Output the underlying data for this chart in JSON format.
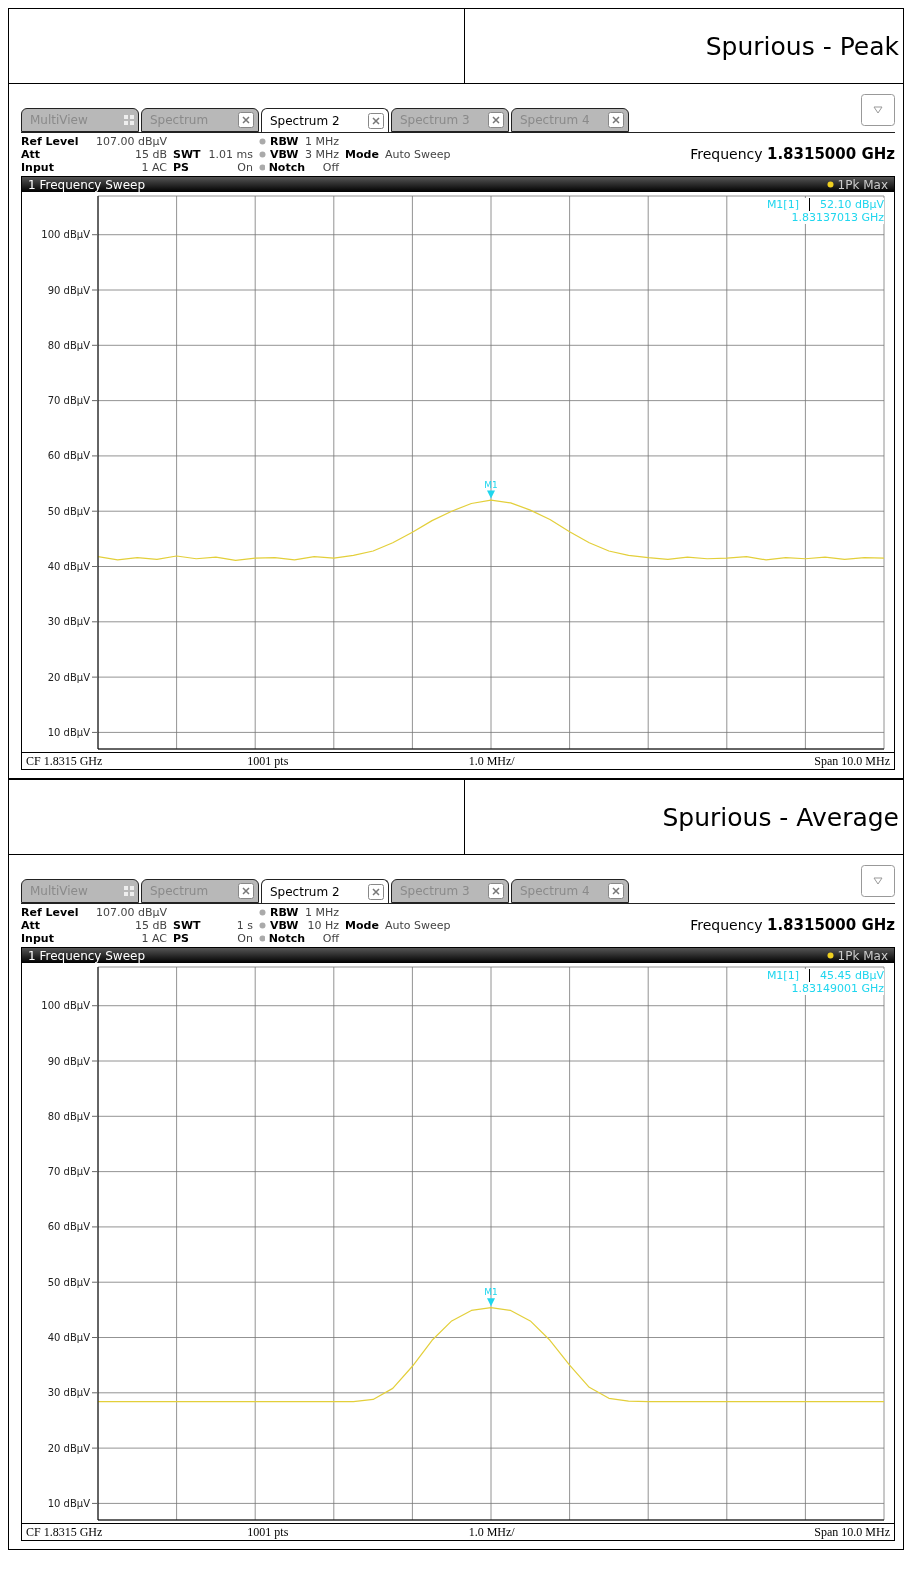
{
  "chart_data": [
    {
      "type": "line",
      "title": "Spurious - Peak",
      "categories": [
        null,
        null,
        null,
        null,
        null,
        null,
        null,
        null,
        null,
        null,
        null,
        null,
        null,
        null,
        null,
        null,
        null,
        null,
        null,
        null,
        null,
        null,
        null,
        null,
        null,
        null,
        null,
        null,
        null,
        null,
        null,
        null,
        null,
        null,
        null,
        null,
        null,
        null,
        null,
        null,
        null
      ],
      "series": [
        {
          "color": "#e3cf3a",
          "values": [
            41.8,
            41.2,
            41.6,
            41.3,
            41.9,
            41.4,
            41.7,
            41.1,
            41.5,
            41.6,
            41.2,
            41.8,
            41.5,
            42.0,
            42.8,
            44.3,
            46.2,
            48.3,
            50.0,
            51.4,
            52.0,
            51.5,
            50.2,
            48.5,
            46.3,
            44.3,
            42.8,
            42.0,
            41.6,
            41.3,
            41.7,
            41.4,
            41.5,
            41.8,
            41.2,
            41.6,
            41.4,
            41.7,
            41.3,
            41.6,
            41.5
          ]
        }
      ],
      "ylim": [
        7,
        107
      ],
      "yticks": [
        {
          "value": 10,
          "label": "10 dBµV"
        },
        {
          "value": 20,
          "label": "20 dBµV"
        },
        {
          "value": 30,
          "label": "30 dBµV"
        },
        {
          "value": 40,
          "label": "40 dBµV"
        },
        {
          "value": 50,
          "label": "50 dBµV"
        },
        {
          "value": 60,
          "label": "60 dBµV"
        },
        {
          "value": 70,
          "label": "70 dBµV"
        },
        {
          "value": 80,
          "label": "80 dBµV"
        },
        {
          "value": 90,
          "label": "90 dBµV"
        },
        {
          "value": 100,
          "label": "100 dBµV"
        }
      ],
      "grid": true,
      "tick_labels": "y",
      "annotations": [
        "MultiView",
        "Spectrum",
        "Spectrum 2",
        "Spectrum 3",
        "Spectrum 4",
        "Ref Level",
        "107.00 dBµV",
        "Att",
        "15 dB",
        "SWT",
        "1.01 ms",
        "RBW",
        "1 MHz",
        "VBW",
        "3 MHz",
        "Mode",
        "Auto Sweep",
        "Input",
        "1 AC",
        "PS",
        "On",
        "Notch",
        "Off",
        "Frequency",
        "1.8315000 GHz",
        "1 Frequency Sweep",
        "1Pk Max",
        "M1[1]",
        "52.10 dBµV",
        "1.83137013 GHz",
        {
          "text": "M1",
          "y": 52.1
        },
        "CF 1.8315 GHz",
        "1001 pts",
        "1.0 MHz/",
        "Span 10.0 MHz"
      ]
    },
    {
      "type": "line",
      "title": "Spurious - Average",
      "categories": [
        null,
        null,
        null,
        null,
        null,
        null,
        null,
        null,
        null,
        null,
        null,
        null,
        null,
        null,
        null,
        null,
        null,
        null,
        null,
        null,
        null,
        null,
        null,
        null,
        null,
        null,
        null,
        null,
        null,
        null,
        null,
        null,
        null,
        null,
        null,
        null,
        null,
        null,
        null,
        null,
        null
      ],
      "series": [
        {
          "color": "#e3cf3a",
          "values": [
            28.4,
            28.4,
            28.4,
            28.4,
            28.4,
            28.4,
            28.4,
            28.4,
            28.4,
            28.4,
            28.4,
            28.4,
            28.4,
            28.4,
            28.8,
            30.8,
            34.8,
            39.5,
            43.0,
            44.9,
            45.4,
            44.9,
            43.0,
            39.5,
            35.0,
            31.0,
            29.0,
            28.5,
            28.4,
            28.4,
            28.4,
            28.4,
            28.4,
            28.4,
            28.4,
            28.4,
            28.4,
            28.4,
            28.4,
            28.4,
            28.4
          ]
        }
      ],
      "ylim": [
        7,
        107
      ],
      "yticks": [
        {
          "value": 10,
          "label": "10 dBµV"
        },
        {
          "value": 20,
          "label": "20 dBµV"
        },
        {
          "value": 30,
          "label": "30 dBµV"
        },
        {
          "value": 40,
          "label": "40 dBµV"
        },
        {
          "value": 50,
          "label": "50 dBµV"
        },
        {
          "value": 60,
          "label": "60 dBµV"
        },
        {
          "value": 70,
          "label": "70 dBµV"
        },
        {
          "value": 80,
          "label": "80 dBµV"
        },
        {
          "value": 90,
          "label": "90 dBµV"
        },
        {
          "value": 100,
          "label": "100 dBµV"
        }
      ],
      "grid": true,
      "tick_labels": "y",
      "annotations": [
        "MultiView",
        "Spectrum",
        "Spectrum 2",
        "Spectrum 3",
        "Spectrum 4",
        "Ref Level",
        "107.00 dBµV",
        "Att",
        "15 dB",
        "SWT",
        "1 s",
        "RBW",
        "1 MHz",
        "VBW",
        "10 Hz",
        "Mode",
        "Auto Sweep",
        "Input",
        "1 AC",
        "PS",
        "On",
        "Notch",
        "Off",
        "Frequency",
        "1.8315000 GHz",
        "1 Frequency Sweep",
        "1Pk Max",
        "M1[1]",
        "45.45 dBµV",
        "1.83149001 GHz",
        {
          "text": "M1",
          "y": 45.45
        },
        "CF 1.8315 GHz",
        "1001 pts",
        "1.0 MHz/",
        "Span 10.0 MHz"
      ]
    }
  ]
}
